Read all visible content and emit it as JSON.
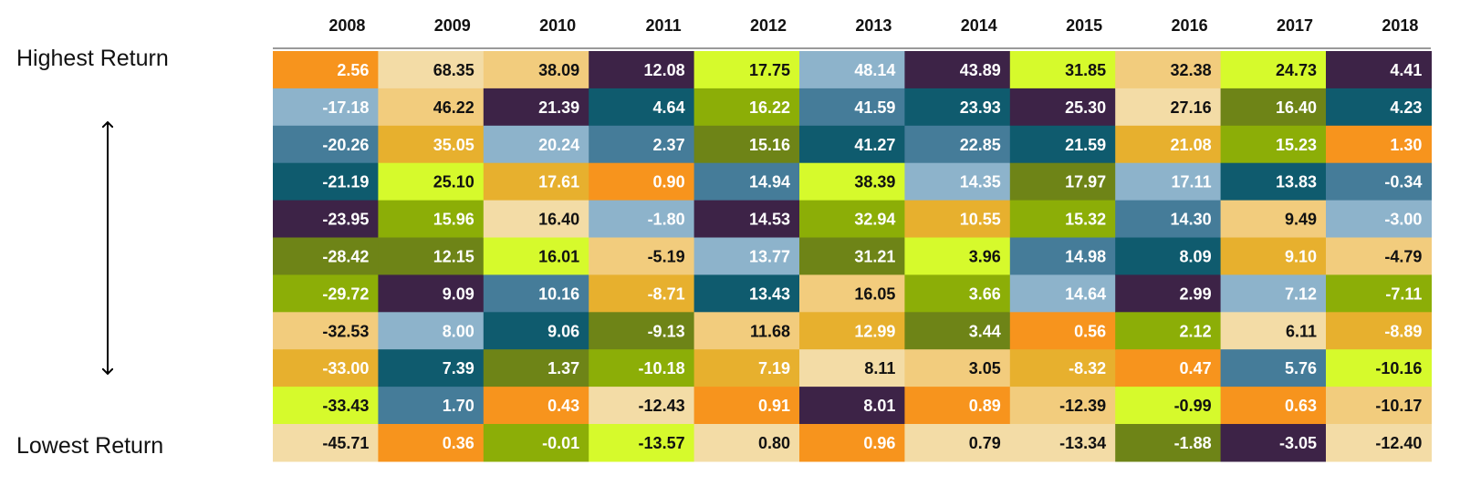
{
  "chart_data": {
    "type": "table",
    "title": "",
    "top_label": "Highest Return",
    "bottom_label": "Lowest Return",
    "years": [
      "2008",
      "2009",
      "2010",
      "2011",
      "2012",
      "2013",
      "2014",
      "2015",
      "2016",
      "2017",
      "2018"
    ],
    "palette": {
      "orange": "#F7941D",
      "cream": "#F3DCA6",
      "tan": "#F2CC7D",
      "gold": "#E7B02E",
      "purple": "#3D2347",
      "lime": "#D6FA2C",
      "olive_green": "#8CAE07",
      "dark_olive": "#6E8417",
      "light_blue": "#8DB3CB",
      "steel_blue": "#457C99",
      "teal": "#0F5B6E"
    },
    "columns": [
      {
        "year": "2008",
        "cells": [
          {
            "value": "2.56",
            "color": "orange"
          },
          {
            "value": "-17.18",
            "color": "light_blue"
          },
          {
            "value": "-20.26",
            "color": "steel_blue"
          },
          {
            "value": "-21.19",
            "color": "teal"
          },
          {
            "value": "-23.95",
            "color": "purple"
          },
          {
            "value": "-28.42",
            "color": "dark_olive"
          },
          {
            "value": "-29.72",
            "color": "olive_green"
          },
          {
            "value": "-32.53",
            "color": "tan"
          },
          {
            "value": "-33.00",
            "color": "gold"
          },
          {
            "value": "-33.43",
            "color": "lime"
          },
          {
            "value": "-45.71",
            "color": "cream"
          }
        ]
      },
      {
        "year": "2009",
        "cells": [
          {
            "value": "68.35",
            "color": "cream"
          },
          {
            "value": "46.22",
            "color": "tan"
          },
          {
            "value": "35.05",
            "color": "gold"
          },
          {
            "value": "25.10",
            "color": "lime"
          },
          {
            "value": "15.96",
            "color": "olive_green"
          },
          {
            "value": "12.15",
            "color": "dark_olive"
          },
          {
            "value": "9.09",
            "color": "purple"
          },
          {
            "value": "8.00",
            "color": "light_blue"
          },
          {
            "value": "7.39",
            "color": "teal"
          },
          {
            "value": "1.70",
            "color": "steel_blue"
          },
          {
            "value": "0.36",
            "color": "orange"
          }
        ]
      },
      {
        "year": "2010",
        "cells": [
          {
            "value": "38.09",
            "color": "tan"
          },
          {
            "value": "21.39",
            "color": "purple"
          },
          {
            "value": "20.24",
            "color": "light_blue"
          },
          {
            "value": "17.61",
            "color": "gold"
          },
          {
            "value": "16.40",
            "color": "cream"
          },
          {
            "value": "16.01",
            "color": "lime"
          },
          {
            "value": "10.16",
            "color": "steel_blue"
          },
          {
            "value": "9.06",
            "color": "teal"
          },
          {
            "value": "1.37",
            "color": "dark_olive"
          },
          {
            "value": "0.43",
            "color": "orange"
          },
          {
            "value": "-0.01",
            "color": "olive_green"
          }
        ]
      },
      {
        "year": "2011",
        "cells": [
          {
            "value": "12.08",
            "color": "purple"
          },
          {
            "value": "4.64",
            "color": "teal"
          },
          {
            "value": "2.37",
            "color": "steel_blue"
          },
          {
            "value": "0.90",
            "color": "orange"
          },
          {
            "value": "-1.80",
            "color": "light_blue"
          },
          {
            "value": "-5.19",
            "color": "tan"
          },
          {
            "value": "-8.71",
            "color": "gold"
          },
          {
            "value": "-9.13",
            "color": "dark_olive"
          },
          {
            "value": "-10.18",
            "color": "olive_green"
          },
          {
            "value": "-12.43",
            "color": "cream"
          },
          {
            "value": "-13.57",
            "color": "lime"
          }
        ]
      },
      {
        "year": "2012",
        "cells": [
          {
            "value": "17.75",
            "color": "lime"
          },
          {
            "value": "16.22",
            "color": "olive_green"
          },
          {
            "value": "15.16",
            "color": "dark_olive"
          },
          {
            "value": "14.94",
            "color": "steel_blue"
          },
          {
            "value": "14.53",
            "color": "purple"
          },
          {
            "value": "13.77",
            "color": "light_blue"
          },
          {
            "value": "13.43",
            "color": "teal"
          },
          {
            "value": "11.68",
            "color": "tan"
          },
          {
            "value": "7.19",
            "color": "gold"
          },
          {
            "value": "0.91",
            "color": "orange"
          },
          {
            "value": "0.80",
            "color": "cream"
          }
        ]
      },
      {
        "year": "2013",
        "cells": [
          {
            "value": "48.14",
            "color": "light_blue"
          },
          {
            "value": "41.59",
            "color": "steel_blue"
          },
          {
            "value": "41.27",
            "color": "teal"
          },
          {
            "value": "38.39",
            "color": "lime"
          },
          {
            "value": "32.94",
            "color": "olive_green"
          },
          {
            "value": "31.21",
            "color": "dark_olive"
          },
          {
            "value": "16.05",
            "color": "tan"
          },
          {
            "value": "12.99",
            "color": "gold"
          },
          {
            "value": "8.11",
            "color": "cream"
          },
          {
            "value": "8.01",
            "color": "purple"
          },
          {
            "value": "0.96",
            "color": "orange"
          }
        ]
      },
      {
        "year": "2014",
        "cells": [
          {
            "value": "43.89",
            "color": "purple"
          },
          {
            "value": "23.93",
            "color": "teal"
          },
          {
            "value": "22.85",
            "color": "steel_blue"
          },
          {
            "value": "14.35",
            "color": "light_blue"
          },
          {
            "value": "10.55",
            "color": "gold"
          },
          {
            "value": "3.96",
            "color": "lime"
          },
          {
            "value": "3.66",
            "color": "olive_green"
          },
          {
            "value": "3.44",
            "color": "dark_olive"
          },
          {
            "value": "3.05",
            "color": "tan"
          },
          {
            "value": "0.89",
            "color": "orange"
          },
          {
            "value": "0.79",
            "color": "cream"
          }
        ]
      },
      {
        "year": "2015",
        "cells": [
          {
            "value": "31.85",
            "color": "lime"
          },
          {
            "value": "25.30",
            "color": "purple"
          },
          {
            "value": "21.59",
            "color": "teal"
          },
          {
            "value": "17.97",
            "color": "dark_olive"
          },
          {
            "value": "15.32",
            "color": "olive_green"
          },
          {
            "value": "14.98",
            "color": "steel_blue"
          },
          {
            "value": "14.64",
            "color": "light_blue"
          },
          {
            "value": "0.56",
            "color": "orange"
          },
          {
            "value": "-8.32",
            "color": "gold"
          },
          {
            "value": "-12.39",
            "color": "tan"
          },
          {
            "value": "-13.34",
            "color": "cream"
          }
        ]
      },
      {
        "year": "2016",
        "cells": [
          {
            "value": "32.38",
            "color": "tan"
          },
          {
            "value": "27.16",
            "color": "cream"
          },
          {
            "value": "21.08",
            "color": "gold"
          },
          {
            "value": "17.11",
            "color": "light_blue"
          },
          {
            "value": "14.30",
            "color": "steel_blue"
          },
          {
            "value": "8.09",
            "color": "teal"
          },
          {
            "value": "2.99",
            "color": "purple"
          },
          {
            "value": "2.12",
            "color": "olive_green"
          },
          {
            "value": "0.47",
            "color": "orange"
          },
          {
            "value": "-0.99",
            "color": "lime"
          },
          {
            "value": "-1.88",
            "color": "dark_olive"
          }
        ]
      },
      {
        "year": "2017",
        "cells": [
          {
            "value": "24.73",
            "color": "lime"
          },
          {
            "value": "16.40",
            "color": "dark_olive"
          },
          {
            "value": "15.23",
            "color": "olive_green"
          },
          {
            "value": "13.83",
            "color": "teal"
          },
          {
            "value": "9.49",
            "color": "tan"
          },
          {
            "value": "9.10",
            "color": "gold"
          },
          {
            "value": "7.12",
            "color": "light_blue"
          },
          {
            "value": "6.11",
            "color": "cream"
          },
          {
            "value": "5.76",
            "color": "steel_blue"
          },
          {
            "value": "0.63",
            "color": "orange"
          },
          {
            "value": "-3.05",
            "color": "purple"
          }
        ]
      },
      {
        "year": "2018",
        "cells": [
          {
            "value": "4.41",
            "color": "purple"
          },
          {
            "value": "4.23",
            "color": "teal"
          },
          {
            "value": "1.30",
            "color": "orange"
          },
          {
            "value": "-0.34",
            "color": "steel_blue"
          },
          {
            "value": "-3.00",
            "color": "light_blue"
          },
          {
            "value": "-4.79",
            "color": "tan"
          },
          {
            "value": "-7.11",
            "color": "olive_green"
          },
          {
            "value": "-8.89",
            "color": "gold"
          },
          {
            "value": "-10.16",
            "color": "lime"
          },
          {
            "value": "-10.17",
            "color": "tan"
          },
          {
            "value": "-12.40",
            "color": "cream"
          }
        ]
      }
    ]
  }
}
